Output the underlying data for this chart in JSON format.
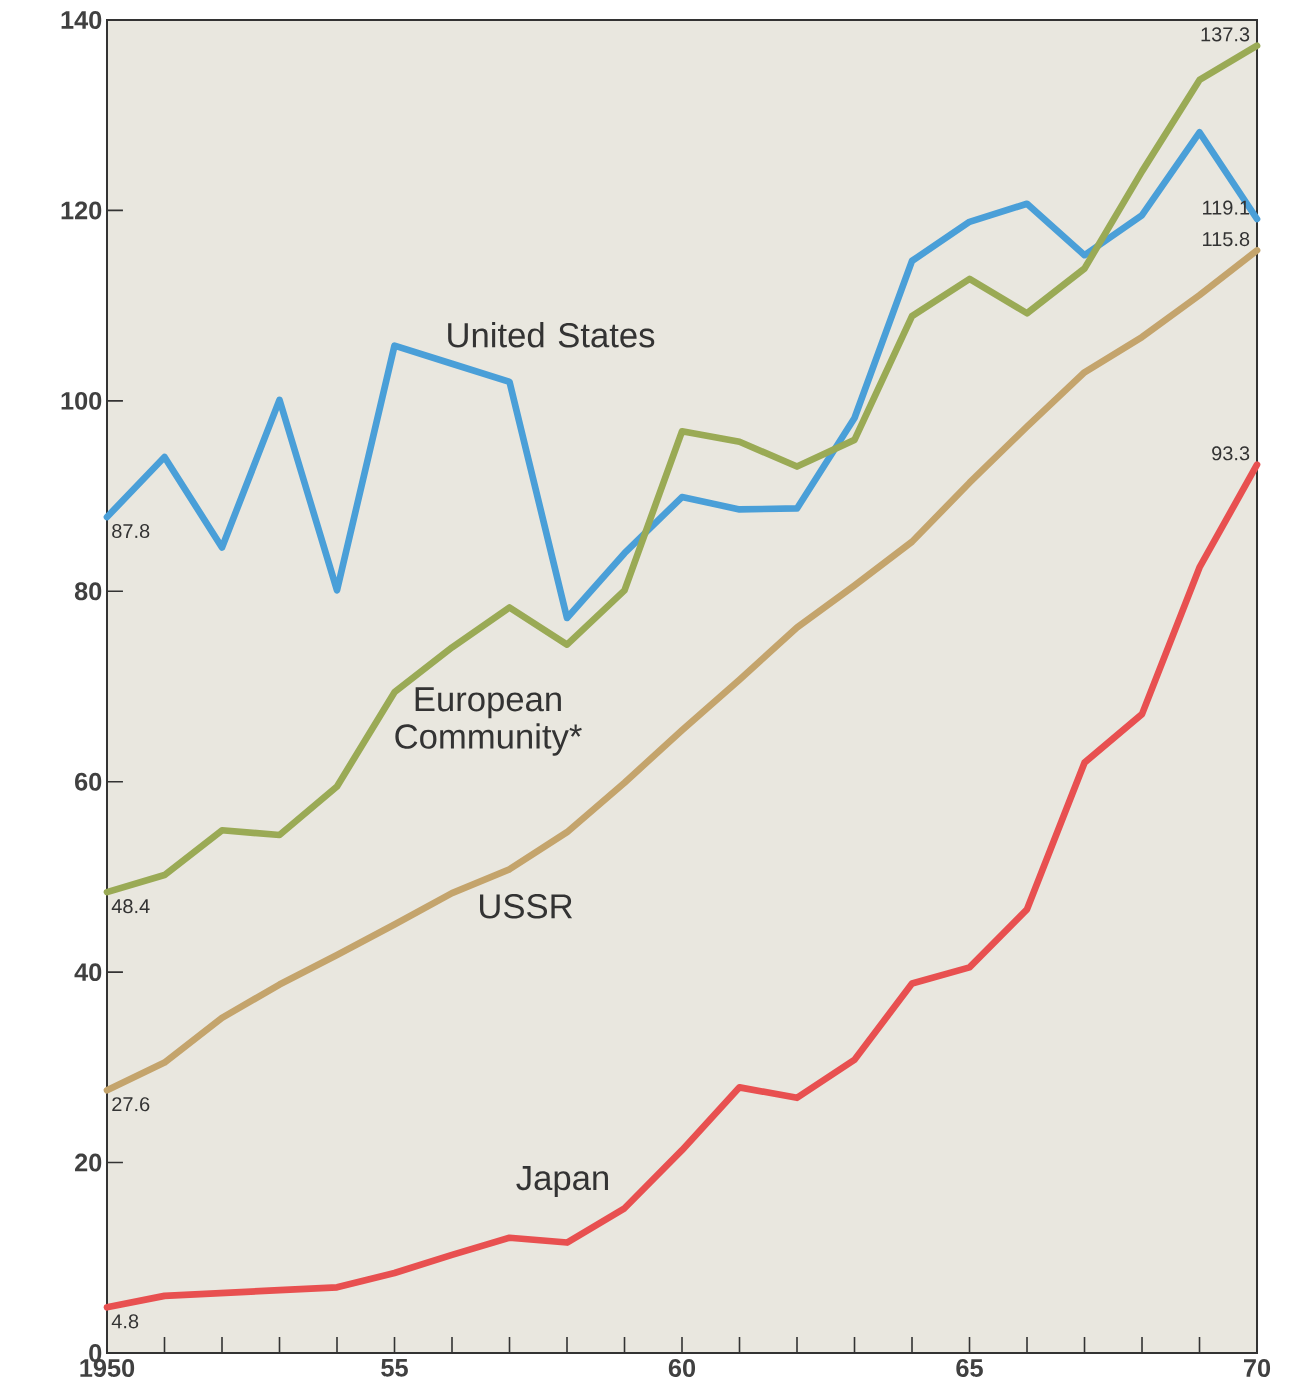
{
  "chart_data": {
    "type": "line",
    "x": [
      1950,
      1951,
      1952,
      1953,
      1954,
      1955,
      1956,
      1957,
      1958,
      1959,
      1960,
      1961,
      1962,
      1963,
      1964,
      1965,
      1966,
      1967,
      1968,
      1969,
      1970
    ],
    "series": [
      {
        "name": "United States",
        "color": "#4a9fd8",
        "values": [
          87.8,
          94.1,
          84.6,
          100.1,
          80.1,
          105.8,
          103.9,
          102.0,
          77.2,
          84.0,
          89.9,
          88.6,
          88.7,
          98.2,
          114.7,
          118.8,
          120.7,
          115.3,
          119.5,
          128.2,
          119.1
        ],
        "value_labels": [
          "87.8",
          null,
          null,
          null,
          null,
          null,
          null,
          null,
          null,
          null,
          null,
          null,
          null,
          null,
          null,
          null,
          null,
          null,
          null,
          null,
          "119.1"
        ]
      },
      {
        "name": "European Community*",
        "color": "#9aaa55",
        "values": [
          48.4,
          50.2,
          54.9,
          54.4,
          59.5,
          69.4,
          74.1,
          78.3,
          74.4,
          80.1,
          96.8,
          95.7,
          93.1,
          95.9,
          108.9,
          112.8,
          109.2,
          113.9,
          124.1,
          133.7,
          137.3
        ],
        "value_labels": [
          "48.4",
          null,
          null,
          null,
          null,
          null,
          null,
          null,
          null,
          null,
          null,
          null,
          null,
          null,
          null,
          null,
          null,
          null,
          null,
          null,
          "137.3"
        ]
      },
      {
        "name": "USSR",
        "color": "#c4a46c",
        "values": [
          27.6,
          30.5,
          35.2,
          38.7,
          41.8,
          45.0,
          48.3,
          50.8,
          54.7,
          59.9,
          65.4,
          70.7,
          76.2,
          80.6,
          85.2,
          91.4,
          97.3,
          103.0,
          106.7,
          111.1,
          115.8
        ],
        "value_labels": [
          "27.6",
          null,
          null,
          null,
          null,
          null,
          null,
          null,
          null,
          null,
          null,
          null,
          null,
          null,
          null,
          null,
          null,
          null,
          null,
          null,
          "115.8"
        ]
      },
      {
        "name": "Japan",
        "color": "#e85050",
        "values": [
          4.8,
          6.0,
          6.3,
          6.6,
          6.9,
          8.4,
          10.3,
          12.1,
          11.6,
          15.2,
          21.3,
          27.9,
          26.8,
          30.8,
          38.8,
          40.5,
          46.6,
          62.0,
          67.1,
          82.5,
          93.3
        ],
        "value_labels": [
          "4.8",
          null,
          null,
          null,
          null,
          null,
          null,
          null,
          null,
          null,
          null,
          null,
          null,
          null,
          null,
          null,
          null,
          null,
          null,
          null,
          "93.3"
        ]
      }
    ],
    "xlim": [
      1950,
      1970
    ],
    "xticks": [
      {
        "value": 1950,
        "label": "1950"
      },
      {
        "value": 1951,
        "label": null
      },
      {
        "value": 1952,
        "label": null
      },
      {
        "value": 1953,
        "label": null
      },
      {
        "value": 1954,
        "label": null
      },
      {
        "value": 1955,
        "label": "55"
      },
      {
        "value": 1956,
        "label": null
      },
      {
        "value": 1957,
        "label": null
      },
      {
        "value": 1958,
        "label": null
      },
      {
        "value": 1959,
        "label": null
      },
      {
        "value": 1960,
        "label": "60"
      },
      {
        "value": 1961,
        "label": null
      },
      {
        "value": 1962,
        "label": null
      },
      {
        "value": 1963,
        "label": null
      },
      {
        "value": 1964,
        "label": null
      },
      {
        "value": 1965,
        "label": "65"
      },
      {
        "value": 1966,
        "label": null
      },
      {
        "value": 1967,
        "label": null
      },
      {
        "value": 1968,
        "label": null
      },
      {
        "value": 1969,
        "label": null
      },
      {
        "value": 1970,
        "label": "70"
      }
    ],
    "ylim": [
      0,
      140
    ],
    "yticks": [
      0,
      20,
      40,
      60,
      80,
      100,
      120,
      140
    ],
    "grid": false,
    "marker": "none",
    "line_style": "solid"
  }
}
